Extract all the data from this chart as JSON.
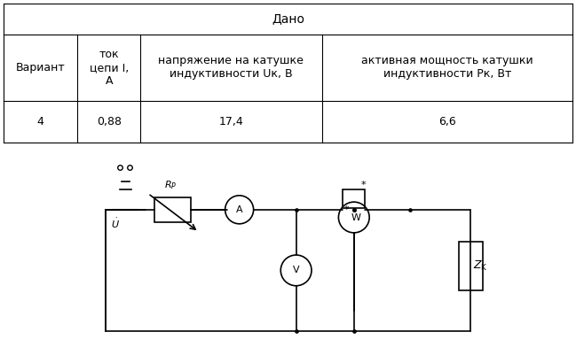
{
  "title": "Дано",
  "col_headers": [
    "Вариант",
    "ток\nцепи I,\nА",
    "напряжение на катушке\nиндуктивности Uк, В",
    "активная мощность катушки\nиндуктивности Pк, Вт"
  ],
  "data_row": [
    "4",
    "0,88",
    "17,4",
    "6,6"
  ],
  "bg_color": "#ffffff",
  "table_line_color": "#000000",
  "font_size": 9,
  "title_font_size": 10
}
